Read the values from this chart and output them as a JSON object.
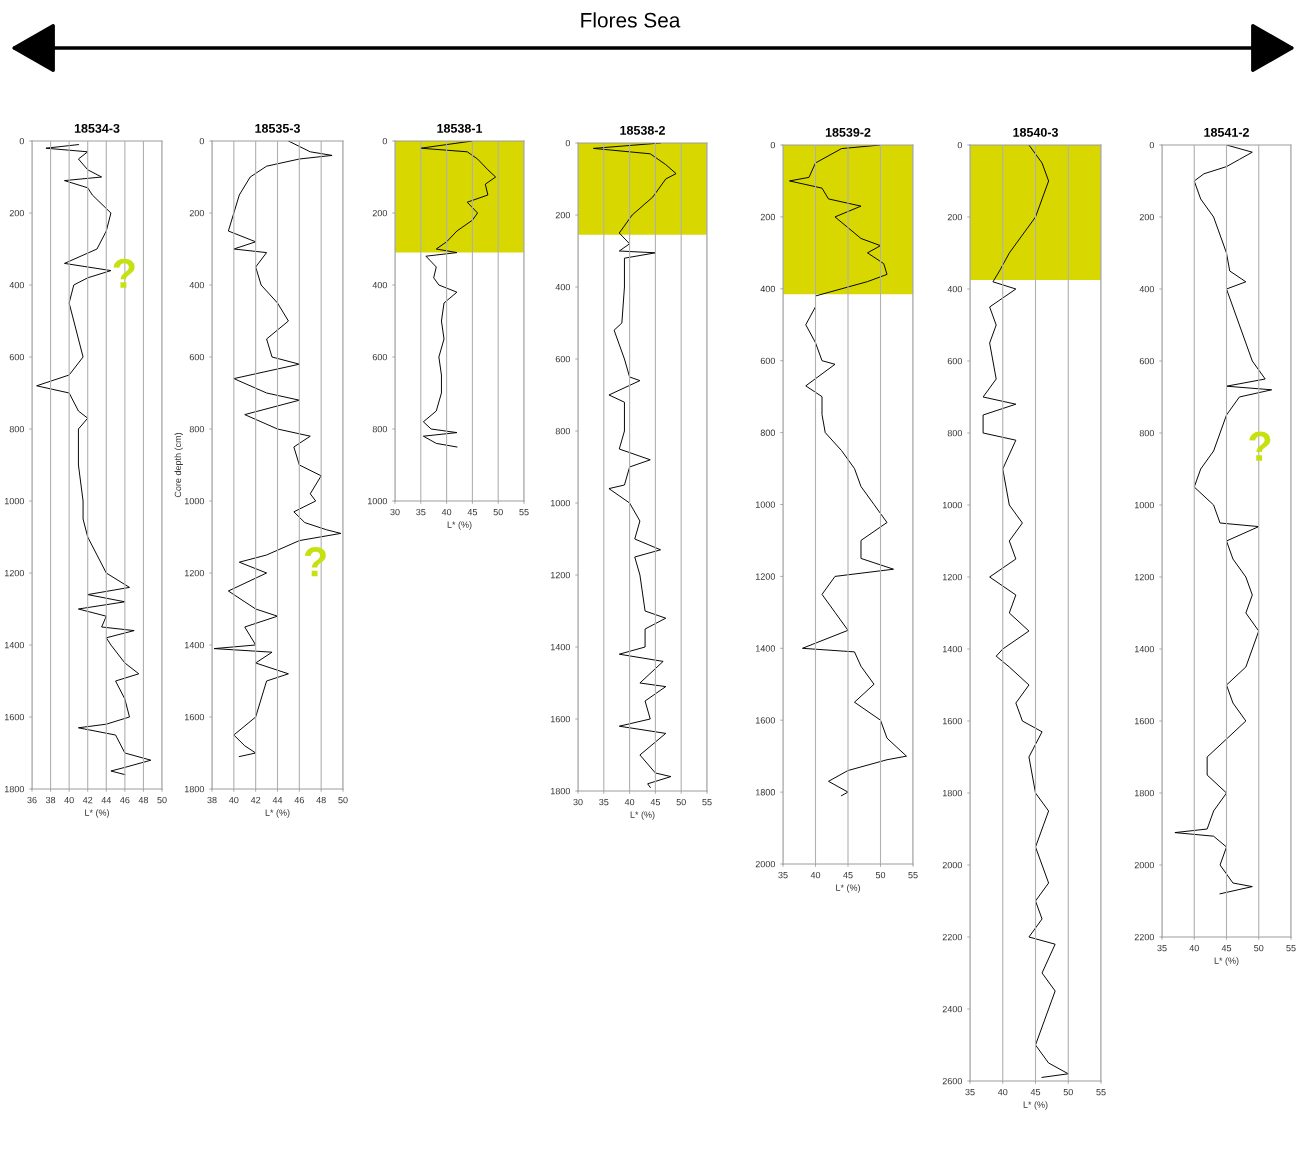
{
  "chart_data": [
    {
      "type": "line",
      "title": "18534-3",
      "xlabel": "L* (%)",
      "xlim": [
        36,
        50
      ],
      "xticks": [
        36,
        38,
        40,
        42,
        44,
        46,
        48,
        50
      ],
      "ylim": [
        1800,
        0
      ],
      "yticks": [
        0,
        200,
        400,
        600,
        800,
        1000,
        1200,
        1400,
        1600,
        1800
      ],
      "grid": "x",
      "annotations": [
        "Flores Sea",
        "?"
      ],
      "series": [
        {
          "color": "#000000",
          "x": [
            41,
            37.5,
            42,
            41,
            42,
            43.5,
            39.5,
            42,
            42.5,
            44.5,
            44,
            43,
            39.5,
            44.5,
            42,
            40.5,
            40,
            40.5,
            41,
            41.5,
            40,
            36.5,
            40,
            41,
            42,
            41,
            41,
            41.5,
            41.5,
            42,
            43,
            44,
            46.5,
            42,
            46,
            41,
            44,
            43.5,
            47,
            44,
            44.5,
            46,
            47.5,
            45,
            46,
            46.5,
            44,
            41,
            45,
            46,
            48.8,
            46,
            44.5,
            46
          ],
          "values": [
            10,
            20,
            30,
            50,
            80,
            100,
            110,
            130,
            150,
            200,
            250,
            300,
            340,
            360,
            380,
            400,
            450,
            500,
            550,
            600,
            650,
            680,
            700,
            750,
            770,
            800,
            900,
            1000,
            1050,
            1100,
            1150,
            1200,
            1240,
            1260,
            1280,
            1300,
            1320,
            1350,
            1360,
            1380,
            1400,
            1450,
            1480,
            1500,
            1550,
            1600,
            1620,
            1630,
            1650,
            1700,
            1720,
            1740,
            1750,
            1760
          ]
        }
      ]
    },
    {
      "type": "line",
      "title": "18535-3",
      "xlabel": "L* (%)",
      "ylabel": "Core depth (cm)",
      "xlim": [
        38,
        50
      ],
      "xticks": [
        38,
        40,
        42,
        44,
        46,
        48,
        50
      ],
      "ylim": [
        1800,
        0
      ],
      "yticks": [
        0,
        200,
        400,
        600,
        800,
        1000,
        1200,
        1400,
        1600,
        1800
      ],
      "grid": "x",
      "annotations": [
        "?"
      ],
      "series": [
        {
          "color": "#000000",
          "x": [
            45,
            47,
            49,
            46,
            43,
            41.5,
            40.5,
            40,
            39.5,
            42,
            40,
            43,
            42,
            42.5,
            44,
            45,
            43,
            43.5,
            46,
            40,
            43,
            46,
            41,
            44,
            47,
            45.5,
            46,
            48,
            47,
            47.5,
            45.5,
            46.5,
            48.5,
            49.8,
            46,
            43,
            40.5,
            43,
            39.5,
            42,
            44,
            41,
            42,
            38.2,
            43.5,
            42,
            45,
            43,
            42.5,
            42,
            40,
            41,
            42,
            40.5
          ],
          "values": [
            0,
            30,
            40,
            50,
            70,
            100,
            150,
            200,
            250,
            280,
            300,
            310,
            350,
            400,
            450,
            500,
            550,
            600,
            620,
            660,
            700,
            720,
            760,
            800,
            820,
            850,
            900,
            930,
            980,
            1000,
            1030,
            1060,
            1080,
            1090,
            1110,
            1150,
            1170,
            1200,
            1250,
            1300,
            1320,
            1350,
            1400,
            1410,
            1420,
            1450,
            1480,
            1500,
            1550,
            1600,
            1650,
            1680,
            1700,
            1710
          ]
        }
      ]
    },
    {
      "type": "line",
      "title": "18538-1",
      "xlabel": "L* (%)",
      "xlim": [
        30,
        55
      ],
      "xticks": [
        30,
        35,
        40,
        45,
        50,
        55
      ],
      "ylim": [
        1000,
        0
      ],
      "yticks": [
        0,
        200,
        400,
        600,
        800,
        1000
      ],
      "grid": "x",
      "bands": [
        {
          "axis": "y",
          "from": 0,
          "to": 310,
          "color": "#d8d800"
        }
      ],
      "series": [
        {
          "color": "#000000",
          "x": [
            45,
            35,
            44,
            46,
            48,
            49.5,
            47.5,
            48,
            44,
            46,
            45,
            42,
            40,
            38,
            42,
            36,
            38,
            37.5,
            38.5,
            42,
            39.5,
            39,
            39.5,
            38.5,
            39,
            39,
            38,
            35.5,
            37,
            42,
            35.5,
            38,
            42
          ],
          "values": [
            0,
            20,
            30,
            50,
            80,
            100,
            120,
            150,
            170,
            200,
            220,
            250,
            280,
            300,
            310,
            320,
            350,
            380,
            400,
            420,
            450,
            500,
            550,
            600,
            650,
            700,
            750,
            780,
            800,
            810,
            820,
            840,
            850
          ]
        }
      ]
    },
    {
      "type": "line",
      "title": "18538-2",
      "xlabel": "L* (%)",
      "xlim": [
        30,
        55
      ],
      "xticks": [
        30,
        35,
        40,
        45,
        50,
        55
      ],
      "ylim": [
        1800,
        0
      ],
      "yticks": [
        0,
        200,
        400,
        600,
        800,
        1000,
        1200,
        1400,
        1600,
        1800
      ],
      "grid": "x",
      "bands": [
        {
          "axis": "y",
          "from": 0,
          "to": 255,
          "color": "#d8d800"
        }
      ],
      "series": [
        {
          "color": "#000000",
          "x": [
            46,
            33,
            44,
            47,
            49,
            47,
            44.5,
            40.5,
            38,
            40,
            38,
            45,
            39,
            39,
            38.5,
            37,
            39,
            40,
            42,
            36,
            39,
            39,
            38,
            44,
            40,
            39,
            36,
            40,
            42,
            41,
            46,
            41,
            42,
            43,
            47,
            43,
            43,
            38,
            46.5,
            42,
            47,
            43,
            44,
            38,
            47,
            42,
            45,
            48,
            43.5,
            44
          ],
          "values": [
            0,
            15,
            30,
            60,
            85,
            100,
            150,
            200,
            250,
            280,
            300,
            305,
            320,
            400,
            500,
            520,
            600,
            650,
            660,
            700,
            720,
            800,
            850,
            880,
            900,
            950,
            960,
            1000,
            1050,
            1100,
            1130,
            1150,
            1200,
            1300,
            1320,
            1350,
            1400,
            1420,
            1440,
            1500,
            1510,
            1550,
            1600,
            1620,
            1640,
            1700,
            1750,
            1760,
            1780,
            1790
          ]
        }
      ]
    },
    {
      "type": "line",
      "title": "18539-2",
      "xlabel": "L* (%)",
      "xlim": [
        35,
        55
      ],
      "xticks": [
        35,
        40,
        45,
        50,
        55
      ],
      "ylim": [
        2000,
        0
      ],
      "yticks": [
        0,
        200,
        400,
        600,
        800,
        1000,
        1200,
        1400,
        1600,
        1800,
        2000
      ],
      "grid": "x",
      "bands": [
        {
          "axis": "y",
          "from": 0,
          "to": 415,
          "color": "#d8d800"
        }
      ],
      "series": [
        {
          "color": "#000000",
          "x": [
            50,
            44,
            40,
            39,
            36,
            41,
            42,
            47,
            43,
            45,
            47,
            50,
            48,
            50.5,
            51,
            48,
            44,
            40,
            40,
            38.5,
            40,
            41,
            43,
            40,
            38.5,
            41,
            41,
            41.5,
            44,
            46,
            47,
            49,
            51,
            47,
            47,
            52,
            43,
            41,
            43,
            45,
            38,
            46,
            47,
            49,
            46,
            50,
            51,
            54,
            51,
            45,
            42,
            45,
            44
          ],
          "values": [
            0,
            10,
            50,
            90,
            100,
            120,
            150,
            170,
            200,
            230,
            260,
            280,
            300,
            330,
            360,
            380,
            400,
            420,
            450,
            500,
            550,
            600,
            610,
            650,
            670,
            700,
            750,
            800,
            850,
            900,
            950,
            1000,
            1050,
            1100,
            1150,
            1180,
            1200,
            1250,
            1300,
            1350,
            1400,
            1410,
            1450,
            1500,
            1550,
            1600,
            1650,
            1700,
            1710,
            1740,
            1770,
            1800,
            1810
          ]
        }
      ]
    },
    {
      "type": "line",
      "title": "18540-3",
      "xlabel": "L* (%)",
      "xlim": [
        35,
        55
      ],
      "xticks": [
        35,
        40,
        45,
        50,
        55
      ],
      "ylim": [
        2600,
        0
      ],
      "yticks": [
        0,
        200,
        400,
        600,
        800,
        1000,
        1200,
        1400,
        1600,
        1800,
        2000,
        2200,
        2400,
        2600
      ],
      "grid": "x",
      "bands": [
        {
          "axis": "y",
          "from": 0,
          "to": 375,
          "color": "#d8d800"
        }
      ],
      "series": [
        {
          "color": "#000000",
          "x": [
            44,
            46,
            47,
            45,
            43,
            41,
            39.5,
            38.5,
            42,
            38,
            39,
            38,
            38.5,
            39,
            37,
            42,
            37,
            37,
            42,
            40,
            41,
            43,
            41,
            42,
            38,
            42,
            41,
            44,
            40,
            39,
            41,
            44,
            42,
            43,
            46,
            44,
            45,
            47,
            46,
            45,
            46,
            47,
            45,
            46,
            44,
            48,
            46,
            48,
            47,
            46,
            45,
            47,
            50,
            46
          ],
          "values": [
            0,
            50,
            100,
            200,
            250,
            300,
            350,
            380,
            400,
            450,
            500,
            550,
            600,
            650,
            700,
            720,
            750,
            800,
            820,
            900,
            1000,
            1050,
            1100,
            1150,
            1200,
            1250,
            1300,
            1350,
            1400,
            1420,
            1450,
            1500,
            1550,
            1600,
            1630,
            1700,
            1800,
            1850,
            1900,
            1950,
            2000,
            2050,
            2100,
            2150,
            2200,
            2220,
            2300,
            2350,
            2400,
            2450,
            2500,
            2550,
            2580,
            2590
          ]
        }
      ]
    },
    {
      "type": "line",
      "title": "18541-2",
      "xlabel": "L* (%)",
      "xlim": [
        35,
        55
      ],
      "xticks": [
        35,
        40,
        45,
        50,
        55
      ],
      "ylim": [
        2200,
        0
      ],
      "yticks": [
        0,
        200,
        400,
        600,
        800,
        1000,
        1200,
        1400,
        1600,
        1800,
        2000,
        2200
      ],
      "grid": "x",
      "annotations": [
        "?"
      ],
      "series": [
        {
          "color": "#000000",
          "x": [
            45,
            49,
            47,
            45,
            41.5,
            40,
            41,
            43,
            44,
            45,
            45.5,
            48,
            45,
            46,
            47,
            48,
            49,
            51,
            45,
            52,
            47,
            45,
            44,
            43,
            41,
            40,
            43,
            44,
            50,
            45,
            46,
            48,
            49,
            48,
            50,
            49,
            48,
            45,
            46,
            48,
            45,
            42,
            42,
            45,
            43,
            42,
            37,
            43,
            45,
            44,
            46,
            49,
            44
          ],
          "values": [
            0,
            20,
            40,
            60,
            80,
            100,
            150,
            200,
            250,
            300,
            350,
            380,
            400,
            450,
            500,
            550,
            600,
            650,
            670,
            680,
            700,
            750,
            800,
            850,
            900,
            950,
            1000,
            1050,
            1060,
            1100,
            1150,
            1200,
            1250,
            1300,
            1350,
            1400,
            1450,
            1500,
            1550,
            1600,
            1650,
            1700,
            1750,
            1800,
            1850,
            1900,
            1910,
            1920,
            1950,
            2000,
            2050,
            2060,
            2080
          ]
        }
      ]
    }
  ]
}
